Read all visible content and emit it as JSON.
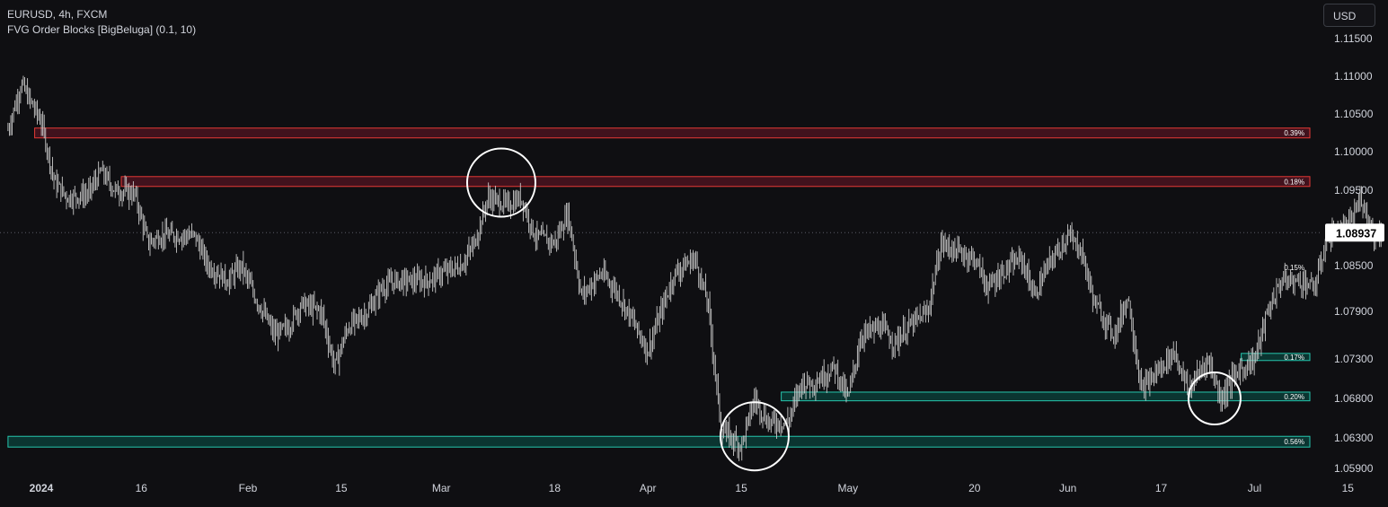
{
  "header": {
    "symbol_line": "EURUSD, 4h, FXCM",
    "indicator_line": "FVG Order Blocks [BigBeluga] (0.1, 10)"
  },
  "currency_button": "USD",
  "colors": {
    "background": "#0f0f12",
    "candle": "#c9c9c9",
    "bearish_block_border": "#e53935",
    "bearish_block_fill": "#4a1320",
    "bullish_block_border": "#26c6ae",
    "bullish_block_fill": "#0b3a35",
    "circle": "#ffffff",
    "price_label_bg": "#ffffff",
    "price_label_text": "#000000"
  },
  "chart_data": {
    "type": "candlestick",
    "symbol": "EURUSD",
    "timeframe": "4h",
    "source": "FXCM",
    "y_axis": {
      "ylim": [
        1.059,
        1.115
      ],
      "ticks": [
        "1.11500",
        "1.11000",
        "1.10500",
        "1.10000",
        "1.09500",
        "1.08500",
        "1.07900",
        "1.07300",
        "1.06800",
        "1.06300",
        "1.05900"
      ]
    },
    "current_price": "1.08937",
    "x_axis": {
      "ticks": [
        {
          "label": "2024",
          "date": "2024-01-01",
          "bold": true
        },
        {
          "label": "16",
          "date": "2024-01-16"
        },
        {
          "label": "Feb",
          "date": "2024-02-01"
        },
        {
          "label": "15",
          "date": "2024-02-15"
        },
        {
          "label": "Mar",
          "date": "2024-03-01"
        },
        {
          "label": "18",
          "date": "2024-03-18"
        },
        {
          "label": "Apr",
          "date": "2024-04-01"
        },
        {
          "label": "15",
          "date": "2024-04-15"
        },
        {
          "label": "May",
          "date": "2024-05-01"
        },
        {
          "label": "20",
          "date": "2024-05-20"
        },
        {
          "label": "Jun",
          "date": "2024-06-03"
        },
        {
          "label": "17",
          "date": "2024-06-17"
        },
        {
          "label": "Jul",
          "date": "2024-07-01"
        },
        {
          "label": "15",
          "date": "2024-07-15"
        }
      ]
    },
    "price_path": [
      [
        "2023-12-27",
        1.103
      ],
      [
        "2023-12-29",
        1.109
      ],
      [
        "2024-01-01",
        1.104
      ],
      [
        "2024-01-03",
        1.096
      ],
      [
        "2024-01-05",
        1.094
      ],
      [
        "2024-01-08",
        1.0945
      ],
      [
        "2024-01-10",
        1.0975
      ],
      [
        "2024-01-12",
        1.095
      ],
      [
        "2024-01-15",
        1.0945
      ],
      [
        "2024-01-17",
        1.088
      ],
      [
        "2024-01-19",
        1.089
      ],
      [
        "2024-01-22",
        1.089
      ],
      [
        "2024-01-24",
        1.089
      ],
      [
        "2024-01-26",
        1.085
      ],
      [
        "2024-01-29",
        1.083
      ],
      [
        "2024-01-31",
        1.085
      ],
      [
        "2024-02-02",
        1.081
      ],
      [
        "2024-02-05",
        1.076
      ],
      [
        "2024-02-07",
        1.077
      ],
      [
        "2024-02-09",
        1.08
      ],
      [
        "2024-02-12",
        1.079
      ],
      [
        "2024-02-14",
        1.072
      ],
      [
        "2024-02-16",
        1.077
      ],
      [
        "2024-02-19",
        1.079
      ],
      [
        "2024-02-21",
        1.082
      ],
      [
        "2024-02-23",
        1.083
      ],
      [
        "2024-02-26",
        1.083
      ],
      [
        "2024-02-28",
        1.083
      ],
      [
        "2024-03-01",
        1.084
      ],
      [
        "2024-03-04",
        1.085
      ],
      [
        "2024-03-06",
        1.088
      ],
      [
        "2024-03-08",
        1.094
      ],
      [
        "2024-03-11",
        1.093
      ],
      [
        "2024-03-13",
        1.094
      ],
      [
        "2024-03-15",
        1.089
      ],
      [
        "2024-03-18",
        1.088
      ],
      [
        "2024-03-20",
        1.092
      ],
      [
        "2024-03-22",
        1.081
      ],
      [
        "2024-03-25",
        1.084
      ],
      [
        "2024-03-27",
        1.082
      ],
      [
        "2024-03-29",
        1.079
      ],
      [
        "2024-04-01",
        1.074
      ],
      [
        "2024-04-03",
        1.079
      ],
      [
        "2024-04-05",
        1.084
      ],
      [
        "2024-04-08",
        1.086
      ],
      [
        "2024-04-10",
        1.08
      ],
      [
        "2024-04-12",
        1.064
      ],
      [
        "2024-04-15",
        1.062
      ],
      [
        "2024-04-17",
        1.068
      ],
      [
        "2024-04-19",
        1.065
      ],
      [
        "2024-04-22",
        1.065
      ],
      [
        "2024-04-24",
        1.07
      ],
      [
        "2024-04-26",
        1.07
      ],
      [
        "2024-04-29",
        1.072
      ],
      [
        "2024-05-01",
        1.068
      ],
      [
        "2024-05-03",
        1.076
      ],
      [
        "2024-05-06",
        1.077
      ],
      [
        "2024-05-08",
        1.075
      ],
      [
        "2024-05-10",
        1.077
      ],
      [
        "2024-05-13",
        1.079
      ],
      [
        "2024-05-15",
        1.088
      ],
      [
        "2024-05-17",
        1.087
      ],
      [
        "2024-05-20",
        1.086
      ],
      [
        "2024-05-22",
        1.082
      ],
      [
        "2024-05-24",
        1.084
      ],
      [
        "2024-05-27",
        1.086
      ],
      [
        "2024-05-29",
        1.081
      ],
      [
        "2024-05-31",
        1.085
      ],
      [
        "2024-06-03",
        1.089
      ],
      [
        "2024-06-05",
        1.087
      ],
      [
        "2024-06-07",
        1.08
      ],
      [
        "2024-06-10",
        1.076
      ],
      [
        "2024-06-12",
        1.081
      ],
      [
        "2024-06-14",
        1.069
      ],
      [
        "2024-06-17",
        1.072
      ],
      [
        "2024-06-19",
        1.074
      ],
      [
        "2024-06-21",
        1.069
      ],
      [
        "2024-06-24",
        1.073
      ],
      [
        "2024-06-26",
        1.068
      ],
      [
        "2024-06-28",
        1.071
      ],
      [
        "2024-07-01",
        1.073
      ],
      [
        "2024-07-03",
        1.079
      ],
      [
        "2024-07-05",
        1.083
      ],
      [
        "2024-07-08",
        1.083
      ],
      [
        "2024-07-10",
        1.082
      ],
      [
        "2024-07-12",
        1.089
      ],
      [
        "2024-07-15",
        1.09
      ],
      [
        "2024-07-17",
        1.094
      ],
      [
        "2024-07-19",
        1.089
      ],
      [
        "2024-07-20",
        1.0894
      ]
    ],
    "order_blocks": [
      {
        "kind": "bearish",
        "label": "0.39%",
        "start": "2023-12-31",
        "top": 1.1032,
        "bottom": 1.1019
      },
      {
        "kind": "bearish",
        "label": "0.18%",
        "start": "2024-01-13",
        "top": 1.0968,
        "bottom": 1.0955
      },
      {
        "kind": "bullish",
        "label": "0.15%",
        "start": "2024-07-12",
        "top": 1.0852,
        "bottom": 1.0843
      },
      {
        "kind": "bullish",
        "label": "0.17%",
        "start": "2024-06-29",
        "top": 1.0737,
        "bottom": 1.0728
      },
      {
        "kind": "bullish",
        "label": "0.20%",
        "start": "2024-04-21",
        "top": 1.0688,
        "bottom": 1.0677
      },
      {
        "kind": "bullish",
        "label": "0.56%",
        "start": "2023-12-27",
        "top": 1.0632,
        "bottom": 1.0618
      }
    ],
    "highlight_circles": [
      {
        "date": "2024-03-10",
        "price": 1.096
      },
      {
        "date": "2024-04-17",
        "price": 1.0632
      },
      {
        "date": "2024-06-25",
        "price": 1.068
      }
    ]
  }
}
